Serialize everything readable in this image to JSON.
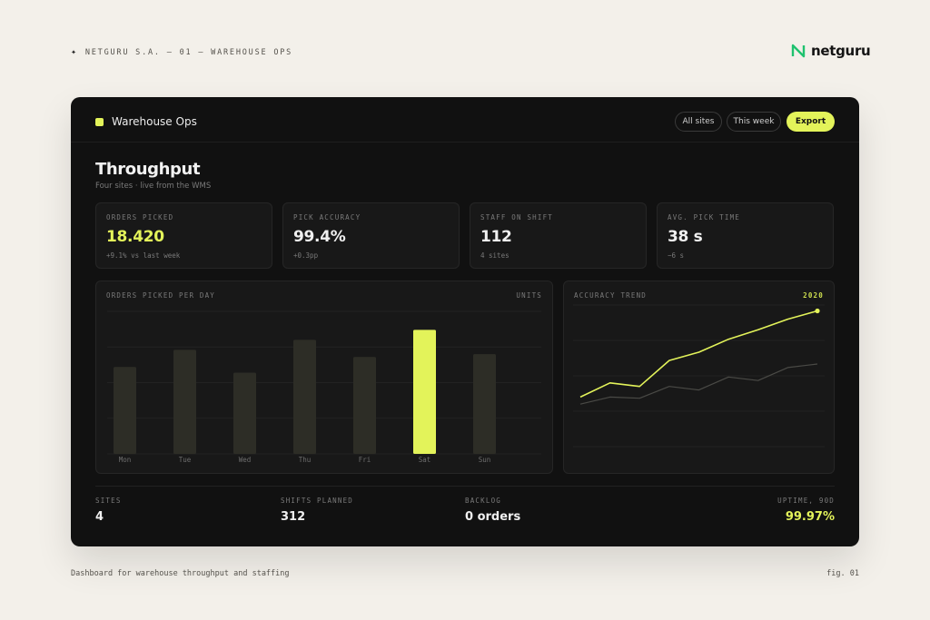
{
  "page": {
    "caption_top": "NETGURU S.A. — 01 — WAREHOUSE OPS",
    "brand": "netguru",
    "caption_bottom": "Dashboard for warehouse throughput and staffing",
    "fig": "fig. 01"
  },
  "app": {
    "name": "Warehouse Ops",
    "filters": {
      "sites": "All sites",
      "period": "This week",
      "export": "Export"
    }
  },
  "header": {
    "title": "Throughput",
    "subtitle": "Four sites · live from the WMS"
  },
  "kpis": [
    {
      "label": "ORDERS PICKED",
      "value": "18.420",
      "delta": "+9.1% vs last week"
    },
    {
      "label": "PICK ACCURACY",
      "value": "99.4%",
      "delta": "+0.3pp"
    },
    {
      "label": "STAFF ON SHIFT",
      "value": "112",
      "delta": "4 sites"
    },
    {
      "label": "AVG. PICK TIME",
      "value": "38 s",
      "delta": "−6 s"
    }
  ],
  "panels": {
    "bars": {
      "title": "ORDERS PICKED PER DAY",
      "unit": "UNITS"
    },
    "trend": {
      "title": "ACCURACY TREND",
      "badge": "2020"
    }
  },
  "footer": [
    {
      "label": "SITES",
      "value": "4"
    },
    {
      "label": "SHIFTS PLANNED",
      "value": "312"
    },
    {
      "label": "BACKLOG",
      "value": "0 orders"
    },
    {
      "label": "UPTIME, 90D",
      "value": "99.97%"
    }
  ],
  "colors": {
    "accent": "#e3f35a",
    "bar": "#2d2d26",
    "card": "#111111",
    "page": "#f3f0ea"
  },
  "icons": {
    "caption_marker": "sparkle-icon",
    "brand": "netguru-logo-icon",
    "app": "app-square-icon"
  },
  "chart_data": [
    {
      "type": "bar",
      "categories": [
        "Mon",
        "Tue",
        "Wed",
        "Thu",
        "Fri",
        "Sat",
        "Sun"
      ],
      "values": [
        61,
        73,
        57,
        80,
        68,
        87,
        70
      ],
      "highlight": "Sat",
      "ylim": [
        0,
        100
      ],
      "grid": true
    },
    {
      "type": "line",
      "x": [
        1,
        2,
        3,
        4,
        5,
        6,
        7,
        8,
        9
      ],
      "series": [
        {
          "values": [
            42,
            54,
            51,
            73,
            80,
            91,
            99,
            108,
            115
          ],
          "highlight": true
        },
        {
          "values": [
            36,
            42,
            41,
            51,
            48,
            59,
            56,
            67,
            70
          ]
        }
      ],
      "ylim": [
        0,
        120
      ],
      "grid": true
    }
  ]
}
